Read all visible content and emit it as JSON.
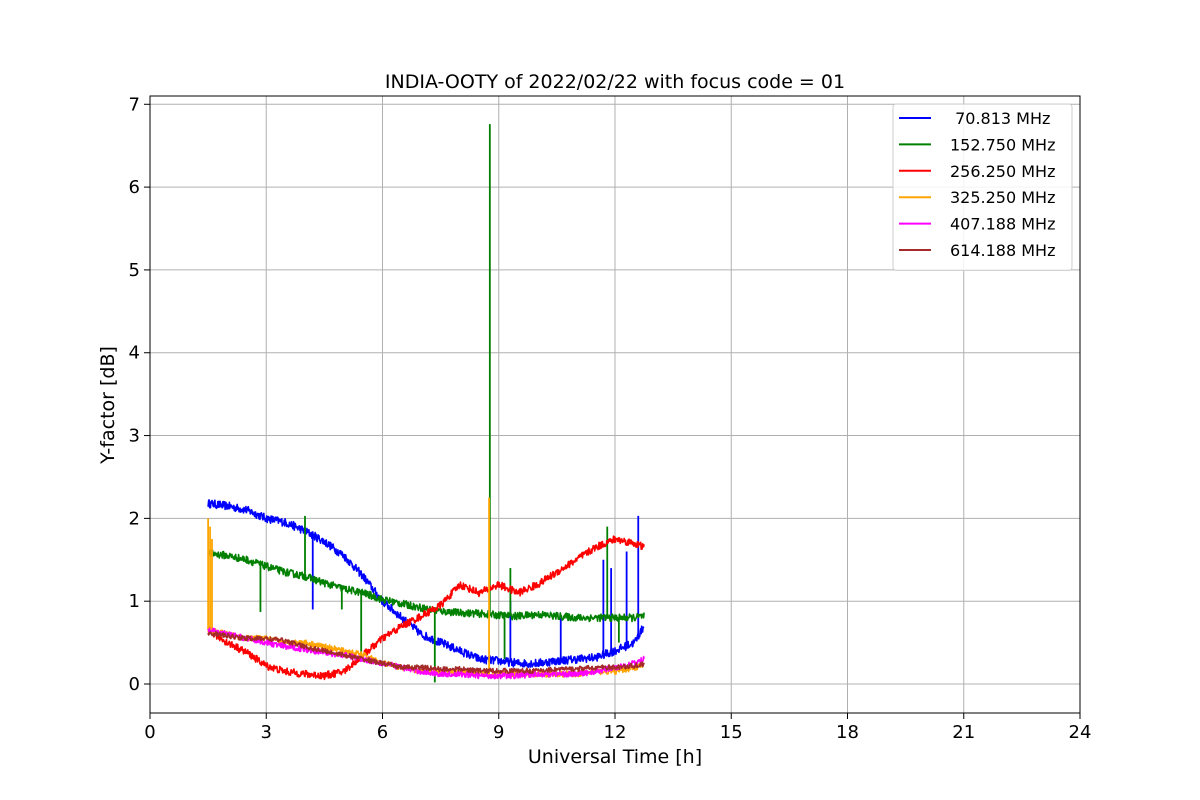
{
  "chart_data": {
    "type": "line",
    "title": "INDIA-OOTY of 2022/02/22 with focus code = 01",
    "xlabel": "Universal Time [h]",
    "ylabel": "Y-factor [dB]",
    "xlim": [
      0,
      24
    ],
    "ylim": [
      -0.35,
      7.1
    ],
    "xticks": [
      "0",
      "3",
      "6",
      "9",
      "12",
      "15",
      "18",
      "21",
      "24"
    ],
    "yticks": [
      "0",
      "1",
      "2",
      "3",
      "4",
      "5",
      "6",
      "7"
    ],
    "grid": true,
    "legend_position": "top-right",
    "series": [
      {
        "name": " 70.813 MHz",
        "color": "#0000ff",
        "noise": 0.05,
        "x": [
          1.5,
          2.0,
          2.5,
          3.0,
          3.5,
          4.0,
          4.5,
          5.0,
          5.5,
          6.0,
          6.5,
          7.0,
          7.5,
          8.0,
          8.5,
          9.0,
          9.5,
          10.0,
          10.5,
          11.0,
          11.5,
          12.0,
          12.5,
          12.75
        ],
        "y": [
          2.18,
          2.15,
          2.1,
          2.0,
          1.95,
          1.85,
          1.72,
          1.55,
          1.3,
          1.0,
          0.8,
          0.6,
          0.5,
          0.4,
          0.3,
          0.28,
          0.25,
          0.25,
          0.28,
          0.3,
          0.32,
          0.4,
          0.5,
          0.7
        ],
        "spikes": [
          [
            4.2,
            0.9
          ],
          [
            9.3,
            1.0
          ],
          [
            10.6,
            0.8
          ],
          [
            11.7,
            1.5
          ],
          [
            11.9,
            1.4
          ],
          [
            12.3,
            1.6
          ],
          [
            12.6,
            2.03
          ]
        ]
      },
      {
        "name": "152.750 MHz",
        "color": "#008000",
        "noise": 0.045,
        "x": [
          1.5,
          2.0,
          2.5,
          3.0,
          3.5,
          4.0,
          4.5,
          5.0,
          5.5,
          6.0,
          6.5,
          7.0,
          7.5,
          8.0,
          8.5,
          9.0,
          9.5,
          10.0,
          10.5,
          11.0,
          11.5,
          12.0,
          12.5,
          12.75
        ],
        "y": [
          1.58,
          1.55,
          1.5,
          1.42,
          1.35,
          1.3,
          1.22,
          1.15,
          1.1,
          1.02,
          0.97,
          0.92,
          0.88,
          0.86,
          0.85,
          0.83,
          0.82,
          0.84,
          0.82,
          0.8,
          0.8,
          0.8,
          0.8,
          0.82
        ],
        "spikes": [
          [
            2.85,
            0.87
          ],
          [
            4.0,
            2.03
          ],
          [
            4.95,
            0.9
          ],
          [
            5.45,
            0.3
          ],
          [
            7.35,
            0.02
          ],
          [
            8.77,
            6.76
          ],
          [
            9.15,
            0.3
          ],
          [
            9.3,
            1.4
          ],
          [
            11.8,
            1.9
          ],
          [
            12.1,
            0.5
          ]
        ]
      },
      {
        "name": "256.250 MHz",
        "color": "#ff0000",
        "noise": 0.045,
        "x": [
          1.5,
          2.0,
          2.5,
          3.0,
          3.5,
          4.0,
          4.5,
          5.0,
          5.5,
          6.0,
          6.5,
          7.0,
          7.5,
          8.0,
          8.5,
          9.0,
          9.5,
          10.0,
          10.5,
          11.0,
          11.5,
          12.0,
          12.5,
          12.75
        ],
        "y": [
          0.65,
          0.5,
          0.38,
          0.22,
          0.15,
          0.12,
          0.1,
          0.15,
          0.35,
          0.55,
          0.7,
          0.82,
          0.95,
          1.2,
          1.1,
          1.2,
          1.1,
          1.2,
          1.35,
          1.5,
          1.65,
          1.75,
          1.7,
          1.65
        ],
        "spikes": []
      },
      {
        "name": "325.250 MHz",
        "color": "#ffa500",
        "noise": 0.035,
        "x": [
          1.5,
          2.0,
          2.5,
          3.0,
          3.5,
          4.0,
          4.5,
          5.0,
          5.5,
          6.0,
          6.5,
          7.0,
          7.5,
          8.0,
          8.5,
          9.0,
          9.5,
          10.0,
          10.5,
          11.0,
          11.5,
          12.0,
          12.5,
          12.75
        ],
        "y": [
          0.65,
          0.6,
          0.55,
          0.55,
          0.5,
          0.5,
          0.45,
          0.4,
          0.35,
          0.25,
          0.2,
          0.15,
          0.15,
          0.15,
          0.12,
          0.12,
          0.12,
          0.12,
          0.12,
          0.12,
          0.15,
          0.15,
          0.2,
          0.22
        ],
        "spikes": [
          [
            1.5,
            2.0
          ],
          [
            1.55,
            1.9
          ],
          [
            1.6,
            1.75
          ],
          [
            8.75,
            2.25
          ]
        ]
      },
      {
        "name": "407.188 MHz",
        "color": "#ff00ff",
        "noise": 0.035,
        "x": [
          1.5,
          2.0,
          2.5,
          3.0,
          3.5,
          4.0,
          4.5,
          5.0,
          5.5,
          6.0,
          6.5,
          7.0,
          7.5,
          8.0,
          8.5,
          9.0,
          9.5,
          10.0,
          10.5,
          11.0,
          11.5,
          12.0,
          12.5,
          12.75
        ],
        "y": [
          0.65,
          0.6,
          0.55,
          0.5,
          0.45,
          0.42,
          0.38,
          0.35,
          0.3,
          0.25,
          0.2,
          0.15,
          0.12,
          0.12,
          0.1,
          0.1,
          0.1,
          0.12,
          0.12,
          0.12,
          0.15,
          0.2,
          0.25,
          0.3
        ],
        "spikes": []
      },
      {
        "name": "614.188 MHz",
        "color": "#a52a2a",
        "noise": 0.03,
        "x": [
          1.5,
          2.0,
          2.5,
          3.0,
          3.5,
          4.0,
          4.5,
          5.0,
          5.5,
          6.0,
          6.5,
          7.0,
          7.5,
          8.0,
          8.5,
          9.0,
          9.5,
          10.0,
          10.5,
          11.0,
          11.5,
          12.0,
          12.5,
          12.75
        ],
        "y": [
          0.62,
          0.58,
          0.55,
          0.55,
          0.52,
          0.45,
          0.4,
          0.35,
          0.3,
          0.25,
          0.2,
          0.2,
          0.18,
          0.18,
          0.16,
          0.16,
          0.16,
          0.16,
          0.18,
          0.18,
          0.2,
          0.2,
          0.22,
          0.24
        ],
        "spikes": []
      }
    ]
  }
}
